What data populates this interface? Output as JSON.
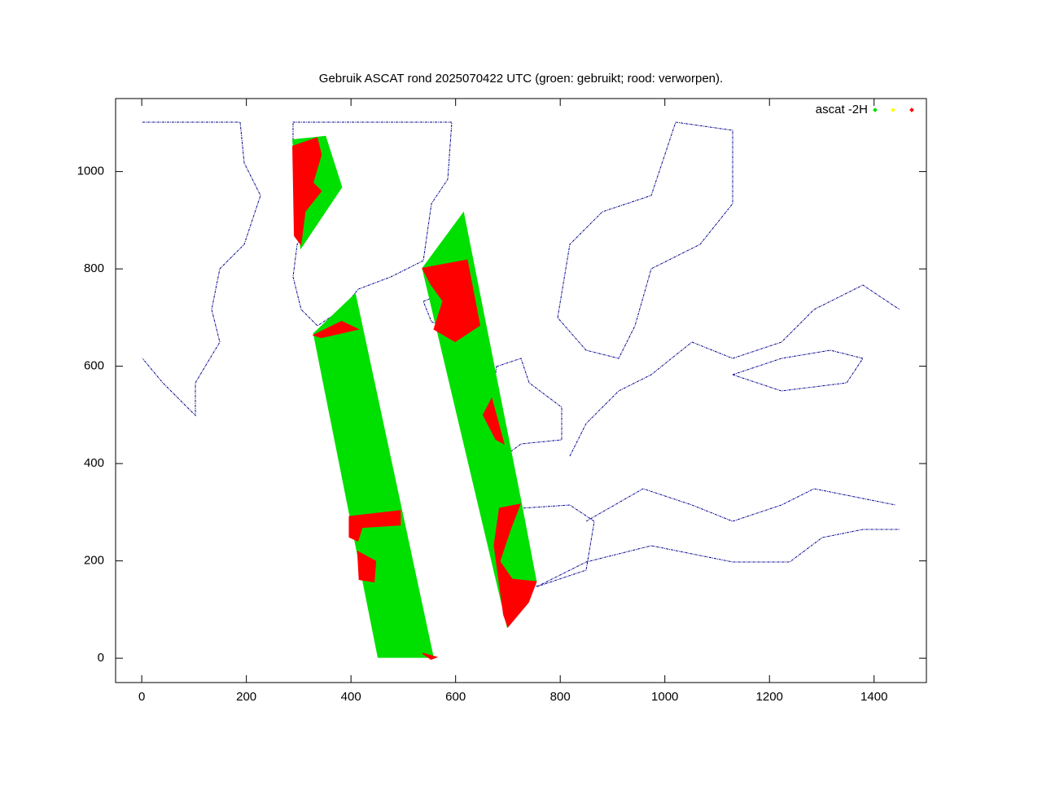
{
  "chart_data": {
    "type": "area",
    "title": "Gebruik ASCAT rond 2025070422 UTC (groen: gebruikt; rood: verworpen).",
    "xlim": [
      -50,
      1500
    ],
    "ylim": [
      -50,
      1150
    ],
    "xticks": [
      0,
      200,
      400,
      600,
      800,
      1000,
      1200,
      1400
    ],
    "yticks": [
      0,
      200,
      400,
      600,
      800,
      1000
    ],
    "grid": false,
    "legend": "top-right",
    "series": [
      {
        "name": "ascat -2H",
        "color": "#00e000",
        "x": [
          329,
          408,
          557,
          452,
          null,
          289,
          351,
          382,
          304,
          null,
          537,
          615,
          726,
          754,
          699
        ],
        "y": [
          667,
          748,
          2,
          2,
          null,
          1065,
          1072,
          968,
          843,
          null,
          801,
          915,
          315,
          157,
          65
        ]
      },
      {
        "color": "#ffff00",
        "x": [],
        "y": []
      },
      {
        "color": "#ff0000",
        "x": [
          289,
          335,
          343,
          327,
          343,
          312,
          304,
          292,
          null,
          329,
          382,
          413,
          343,
          null,
          397,
          494,
          494,
          421,
          413,
          397,
          null,
          413,
          447,
          444,
          416,
          null,
          537,
          622,
          646,
          599,
          559,
          576,
          553,
          null,
          669,
          692,
          677,
          653,
          null,
          684,
          723,
          705,
          684,
          708,
          754,
          739,
          700,
          692,
          674,
          null,
          537,
          563,
          553
        ],
        "y": [
          1052,
          1069,
          1035,
          977,
          960,
          918,
          851,
          868,
          null,
          664,
          692,
          676,
          659,
          null,
          291,
          303,
          274,
          269,
          241,
          249,
          null,
          219,
          199,
          157,
          162,
          null,
          801,
          818,
          684,
          651,
          676,
          734,
          768,
          null,
          533,
          441,
          450,
          500,
          null,
          308,
          316,
          266,
          199,
          162,
          157,
          115,
          65,
          90,
          232,
          null,
          10,
          2,
          -2
        ]
      }
    ]
  }
}
